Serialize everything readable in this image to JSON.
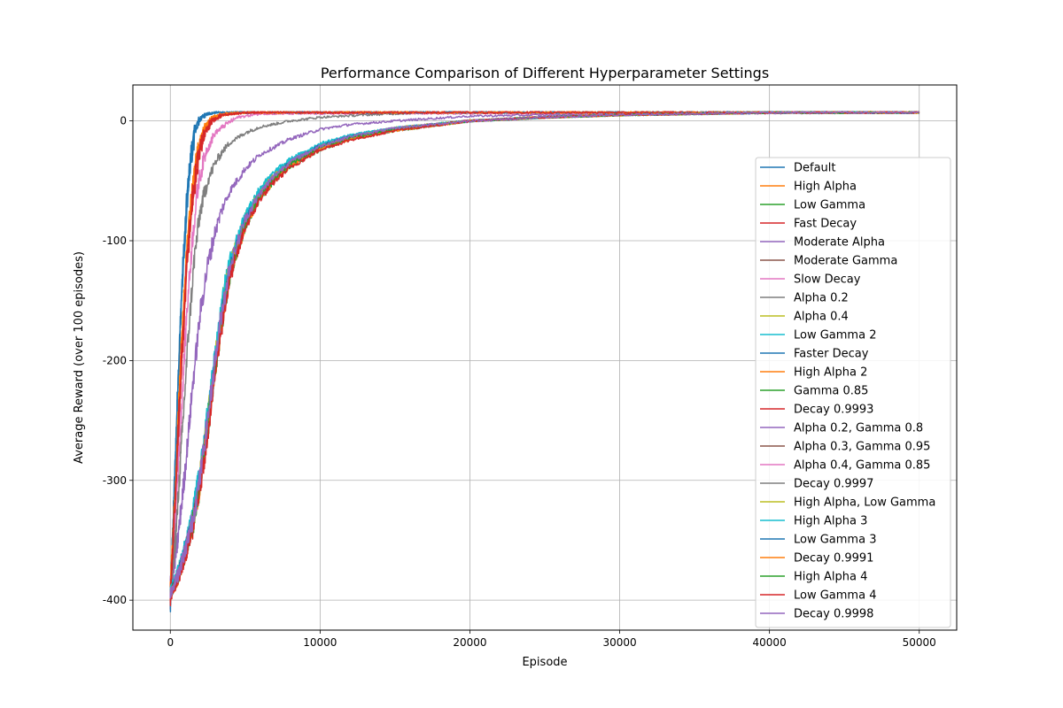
{
  "chart_data": {
    "type": "line",
    "title": "Performance Comparison of Different Hyperparameter Settings",
    "xlabel": "Episode",
    "ylabel": "Average Reward (over 100 episodes)",
    "xlim": [
      -2500,
      52500
    ],
    "ylim": [
      -425,
      30
    ],
    "xticks": [
      0,
      10000,
      20000,
      30000,
      40000,
      50000
    ],
    "yticks": [
      -400,
      -300,
      -200,
      -100,
      0
    ],
    "grid": true,
    "legend_position": "right",
    "x_max": 50000,
    "y_start": -400,
    "y_plateau": 7,
    "series": [
      {
        "name": "Default",
        "color": "#1f77b4",
        "x": [
          0,
          200,
          500,
          800,
          1100,
          1400,
          1700,
          2000,
          2500,
          3000,
          5000,
          50000
        ],
        "y": [
          -400,
          -330,
          -220,
          -130,
          -65,
          -25,
          -5,
          3,
          6,
          7,
          7,
          7
        ]
      },
      {
        "name": "High Alpha",
        "color": "#ff7f0e",
        "x": [
          0,
          300,
          700,
          1100,
          1500,
          1900,
          2300,
          2800,
          3500,
          5000,
          50000
        ],
        "y": [
          -395,
          -320,
          -200,
          -110,
          -55,
          -22,
          -6,
          2,
          5,
          7,
          7
        ]
      },
      {
        "name": "Low Gamma",
        "color": "#2ca02c",
        "x": [
          0,
          500,
          1000,
          1500,
          2000,
          2500,
          3000,
          3500,
          4000,
          5000,
          6000,
          7000,
          8000,
          10000,
          12000,
          15000,
          20000,
          25000,
          30000,
          35000,
          40000,
          50000
        ],
        "y": [
          -395,
          -380,
          -360,
          -335,
          -300,
          -255,
          -205,
          -160,
          -125,
          -85,
          -62,
          -47,
          -36,
          -22,
          -14,
          -7,
          0,
          3,
          5,
          6,
          7,
          7
        ]
      },
      {
        "name": "Fast Decay",
        "color": "#d62728",
        "x": [
          0,
          300,
          700,
          1100,
          1500,
          1900,
          2300,
          2800,
          3500,
          5000,
          50000
        ],
        "y": [
          -398,
          -330,
          -220,
          -125,
          -65,
          -28,
          -10,
          0,
          5,
          7,
          7
        ]
      },
      {
        "name": "Moderate Alpha",
        "color": "#9467bd",
        "x": [
          0,
          500,
          1000,
          1500,
          2000,
          2500,
          3000,
          3500,
          4000,
          5000,
          6000,
          8000,
          10000,
          12000,
          15000,
          20000,
          30000,
          50000
        ],
        "y": [
          -390,
          -350,
          -290,
          -220,
          -160,
          -120,
          -92,
          -72,
          -58,
          -40,
          -28,
          -15,
          -7,
          -3,
          0,
          4,
          6,
          7
        ]
      },
      {
        "name": "Moderate Gamma",
        "color": "#8c564b",
        "x": [
          0,
          500,
          1000,
          1500,
          2000,
          2500,
          3000,
          3500,
          4000,
          5000,
          6000,
          7000,
          8000,
          10000,
          12000,
          15000,
          20000,
          25000,
          30000,
          35000,
          40000,
          50000
        ],
        "y": [
          -395,
          -380,
          -358,
          -332,
          -298,
          -252,
          -203,
          -158,
          -123,
          -84,
          -61,
          -46,
          -35,
          -21,
          -13,
          -6,
          0,
          3,
          5,
          6,
          7,
          7
        ]
      },
      {
        "name": "Slow Decay",
        "color": "#e377c2",
        "x": [
          0,
          300,
          700,
          1100,
          1500,
          1900,
          2400,
          3000,
          3800,
          4500,
          6000,
          50000
        ],
        "y": [
          -395,
          -340,
          -250,
          -160,
          -95,
          -50,
          -25,
          -10,
          -2,
          3,
          6,
          7
        ]
      },
      {
        "name": "Alpha 0.2",
        "color": "#7f7f7f",
        "x": [
          0,
          400,
          800,
          1200,
          1600,
          2000,
          2500,
          3000,
          3500,
          4000,
          5000,
          6000,
          8000,
          10000,
          13000,
          17000,
          50000
        ],
        "y": [
          -395,
          -340,
          -260,
          -180,
          -115,
          -75,
          -50,
          -35,
          -25,
          -18,
          -10,
          -5,
          0,
          3,
          5,
          7,
          7
        ]
      },
      {
        "name": "Alpha 0.4",
        "color": "#bcbd22",
        "x": [
          0,
          500,
          1000,
          1500,
          2000,
          2500,
          3000,
          3500,
          4000,
          5000,
          6000,
          7000,
          8000,
          10000,
          12000,
          15000,
          20000,
          25000,
          30000,
          35000,
          40000,
          50000
        ],
        "y": [
          -395,
          -381,
          -361,
          -336,
          -301,
          -256,
          -206,
          -161,
          -126,
          -86,
          -63,
          -48,
          -37,
          -23,
          -15,
          -8,
          0,
          3,
          5,
          6,
          7,
          7
        ]
      },
      {
        "name": "Low Gamma 2",
        "color": "#17becf",
        "x": [
          0,
          500,
          1000,
          1500,
          2000,
          2500,
          3000,
          3500,
          4000,
          5000,
          6000,
          7000,
          8000,
          10000,
          12000,
          15000,
          20000,
          25000,
          30000,
          35000,
          40000,
          50000
        ],
        "y": [
          -393,
          -378,
          -356,
          -328,
          -292,
          -245,
          -195,
          -150,
          -116,
          -79,
          -57,
          -43,
          -33,
          -20,
          -12,
          -6,
          0,
          3,
          5,
          6,
          7,
          7
        ]
      },
      {
        "name": "Faster Decay",
        "color": "#1f77b4",
        "x": [
          0,
          200,
          500,
          800,
          1100,
          1400,
          1700,
          2000,
          2500,
          3000,
          5000,
          50000
        ],
        "y": [
          -402,
          -335,
          -225,
          -135,
          -70,
          -28,
          -7,
          2,
          6,
          7,
          7,
          7
        ]
      },
      {
        "name": "High Alpha 2",
        "color": "#ff7f0e",
        "x": [
          0,
          300,
          700,
          1100,
          1500,
          1900,
          2300,
          2800,
          3500,
          5000,
          50000
        ],
        "y": [
          -392,
          -315,
          -195,
          -105,
          -50,
          -20,
          -5,
          3,
          6,
          7,
          7
        ]
      },
      {
        "name": "Gamma 0.85",
        "color": "#2ca02c",
        "x": [
          0,
          500,
          1000,
          1500,
          2000,
          2500,
          3000,
          3500,
          4000,
          5000,
          6000,
          7000,
          8000,
          10000,
          12000,
          15000,
          20000,
          25000,
          30000,
          35000,
          40000,
          50000
        ],
        "y": [
          -396,
          -382,
          -362,
          -338,
          -303,
          -258,
          -208,
          -163,
          -128,
          -88,
          -64,
          -49,
          -38,
          -24,
          -15,
          -8,
          0,
          3,
          5,
          6,
          7,
          7
        ]
      },
      {
        "name": "Decay 0.9993",
        "color": "#d62728",
        "x": [
          0,
          300,
          700,
          1100,
          1500,
          1900,
          2300,
          2800,
          3500,
          5000,
          50000
        ],
        "y": [
          -397,
          -325,
          -210,
          -118,
          -60,
          -25,
          -8,
          1,
          5,
          7,
          7
        ]
      },
      {
        "name": "Alpha 0.2, Gamma 0.8",
        "color": "#9467bd",
        "x": [
          0,
          500,
          1000,
          1500,
          2000,
          2500,
          3000,
          3500,
          4000,
          5000,
          6000,
          7000,
          8000,
          10000,
          12000,
          15000,
          20000,
          25000,
          30000,
          35000,
          40000,
          50000
        ],
        "y": [
          -394,
          -380,
          -359,
          -333,
          -297,
          -250,
          -200,
          -155,
          -120,
          -82,
          -60,
          -45,
          -34,
          -21,
          -13,
          -6,
          0,
          3,
          5,
          6,
          7,
          7
        ]
      },
      {
        "name": "Alpha 0.3, Gamma 0.95",
        "color": "#8c564b",
        "x": [
          0,
          500,
          1000,
          1500,
          2000,
          2500,
          3000,
          3500,
          4000,
          5000,
          6000,
          7000,
          8000,
          10000,
          12000,
          15000,
          20000,
          25000,
          30000,
          35000,
          40000,
          50000
        ],
        "y": [
          -395,
          -381,
          -360,
          -334,
          -299,
          -253,
          -204,
          -159,
          -124,
          -85,
          -62,
          -47,
          -36,
          -22,
          -14,
          -7,
          0,
          3,
          5,
          6,
          7,
          7
        ]
      },
      {
        "name": "Alpha 0.4, Gamma 0.85",
        "color": "#e377c2",
        "x": [
          0,
          500,
          1000,
          1500,
          2000,
          2500,
          3000,
          3500,
          4000,
          5000,
          6000,
          7000,
          8000,
          10000,
          12000,
          15000,
          20000,
          25000,
          30000,
          35000,
          40000,
          50000
        ],
        "y": [
          -395,
          -380,
          -360,
          -335,
          -300,
          -254,
          -205,
          -160,
          -125,
          -85,
          -62,
          -47,
          -36,
          -22,
          -14,
          -7,
          0,
          3,
          5,
          6,
          7,
          7
        ]
      },
      {
        "name": "Decay 0.9997",
        "color": "#7f7f7f",
        "x": [
          0,
          500,
          1000,
          1500,
          2000,
          2500,
          3000,
          3500,
          4000,
          5000,
          6000,
          7000,
          8000,
          10000,
          12000,
          15000,
          20000,
          25000,
          30000,
          35000,
          40000,
          50000
        ],
        "y": [
          -396,
          -381,
          -361,
          -336,
          -301,
          -255,
          -206,
          -161,
          -126,
          -86,
          -63,
          -48,
          -37,
          -23,
          -15,
          -8,
          0,
          3,
          5,
          6,
          7,
          7
        ]
      },
      {
        "name": "High Alpha, Low Gamma",
        "color": "#bcbd22",
        "x": [
          0,
          500,
          1000,
          1500,
          2000,
          2500,
          3000,
          3500,
          4000,
          5000,
          6000,
          7000,
          8000,
          10000,
          12000,
          15000,
          20000,
          25000,
          30000,
          35000,
          40000,
          50000
        ],
        "y": [
          -394,
          -379,
          -358,
          -331,
          -295,
          -248,
          -198,
          -153,
          -119,
          -81,
          -59,
          -44,
          -34,
          -21,
          -13,
          -6,
          0,
          3,
          5,
          6,
          7,
          7
        ]
      },
      {
        "name": "High Alpha 3",
        "color": "#17becf",
        "x": [
          0,
          500,
          1000,
          1500,
          2000,
          2500,
          3000,
          3500,
          4000,
          5000,
          6000,
          7000,
          8000,
          10000,
          12000,
          15000,
          20000,
          25000,
          30000,
          35000,
          40000,
          50000
        ],
        "y": [
          -393,
          -377,
          -355,
          -327,
          -290,
          -243,
          -193,
          -148,
          -115,
          -78,
          -56,
          -42,
          -32,
          -19,
          -12,
          -6,
          0,
          3,
          5,
          6,
          7,
          7
        ]
      },
      {
        "name": "Low Gamma 3",
        "color": "#1f77b4",
        "x": [
          0,
          500,
          1000,
          1500,
          2000,
          2500,
          3000,
          3500,
          4000,
          5000,
          6000,
          7000,
          8000,
          10000,
          12000,
          15000,
          20000,
          25000,
          30000,
          35000,
          40000,
          50000
        ],
        "y": [
          -395,
          -380,
          -359,
          -333,
          -298,
          -252,
          -202,
          -157,
          -122,
          -83,
          -61,
          -46,
          -35,
          -21,
          -13,
          -7,
          0,
          3,
          5,
          6,
          7,
          7
        ]
      },
      {
        "name": "Decay 0.9991",
        "color": "#ff7f0e",
        "x": [
          0,
          500,
          1000,
          1500,
          2000,
          2500,
          3000,
          3500,
          4000,
          5000,
          6000,
          7000,
          8000,
          10000,
          12000,
          15000,
          20000,
          25000,
          30000,
          35000,
          40000,
          50000
        ],
        "y": [
          -396,
          -382,
          -362,
          -337,
          -302,
          -257,
          -207,
          -162,
          -127,
          -87,
          -64,
          -48,
          -37,
          -23,
          -15,
          -8,
          0,
          3,
          5,
          6,
          7,
          7
        ]
      },
      {
        "name": "High Alpha 4",
        "color": "#2ca02c",
        "x": [
          0,
          500,
          1000,
          1500,
          2000,
          2500,
          3000,
          3500,
          4000,
          5000,
          6000,
          7000,
          8000,
          10000,
          12000,
          15000,
          20000,
          25000,
          30000,
          35000,
          40000,
          50000
        ],
        "y": [
          -395,
          -381,
          -360,
          -335,
          -300,
          -255,
          -205,
          -160,
          -125,
          -86,
          -62,
          -47,
          -36,
          -22,
          -14,
          -7,
          0,
          3,
          5,
          6,
          7,
          7
        ]
      },
      {
        "name": "Low Gamma 4",
        "color": "#d62728",
        "x": [
          0,
          500,
          1000,
          1500,
          2000,
          2500,
          3000,
          3500,
          4000,
          5000,
          6000,
          7000,
          8000,
          10000,
          12000,
          15000,
          20000,
          25000,
          30000,
          35000,
          40000,
          50000
        ],
        "y": [
          -397,
          -383,
          -363,
          -339,
          -305,
          -260,
          -210,
          -165,
          -130,
          -89,
          -65,
          -50,
          -39,
          -24,
          -16,
          -8,
          0,
          3,
          5,
          6,
          7,
          7
        ]
      },
      {
        "name": "Decay 0.9998",
        "color": "#9467bd",
        "x": [
          0,
          500,
          1000,
          1500,
          2000,
          2500,
          3000,
          3500,
          4000,
          5000,
          6000,
          7000,
          8000,
          10000,
          12000,
          15000,
          20000,
          25000,
          30000,
          35000,
          40000,
          50000
        ],
        "y": [
          -394,
          -379,
          -358,
          -332,
          -296,
          -249,
          -199,
          -154,
          -120,
          -82,
          -60,
          -45,
          -34,
          -21,
          -13,
          -6,
          0,
          3,
          5,
          6,
          7,
          7
        ]
      }
    ]
  }
}
